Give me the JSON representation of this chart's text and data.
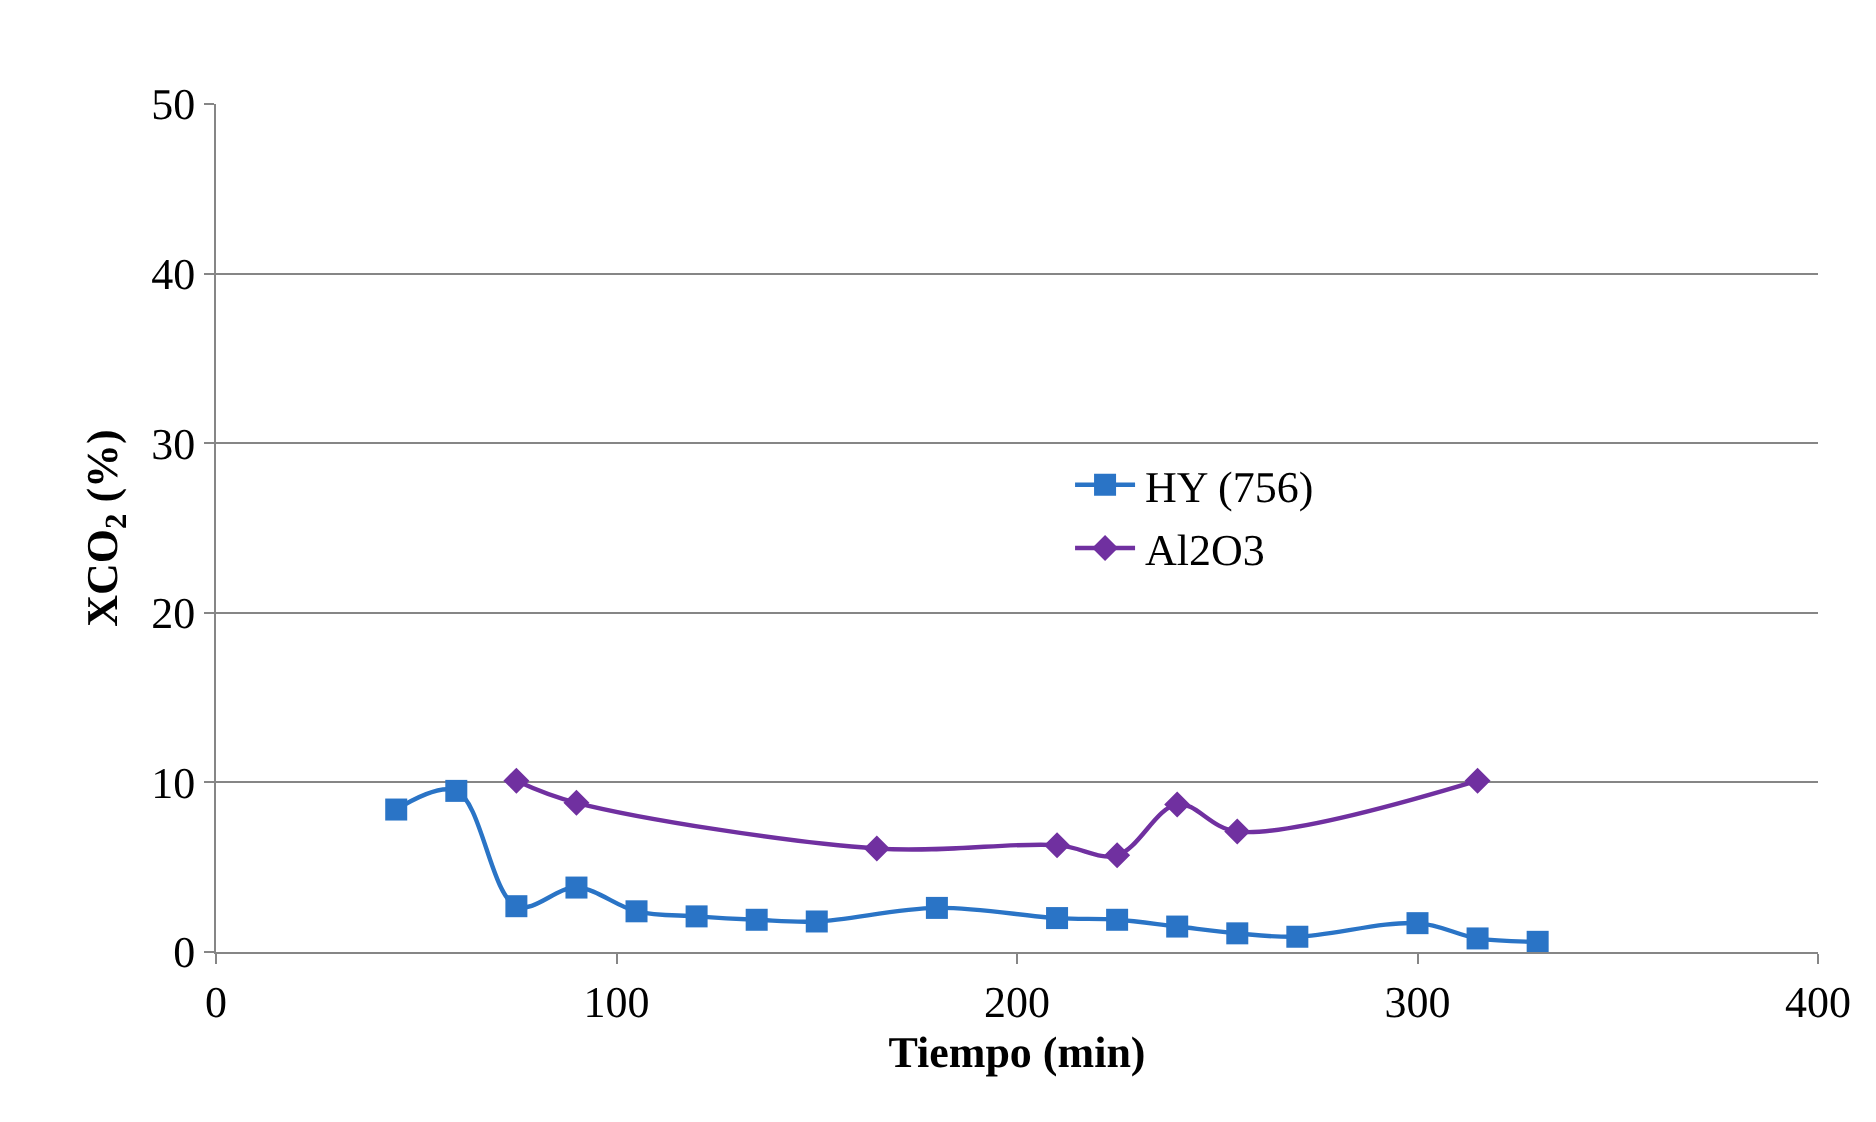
{
  "chart_data": {
    "type": "line",
    "xlabel": "Tiempo (min)",
    "ylabel": "XCO$_{2}$ (%)",
    "xlim": [
      0,
      400
    ],
    "xticks": [
      0,
      100,
      200,
      300,
      400
    ],
    "ylim": [
      0,
      50
    ],
    "yticks": [
      0,
      10,
      20,
      30,
      40,
      50
    ],
    "grid": "y",
    "legend": "center right",
    "line_style": "solid",
    "series": [
      {
        "name": "HY (756)",
        "color": "#2a74c6",
        "marker": "square",
        "x": [
          45,
          60,
          75,
          90,
          105,
          120,
          135,
          150,
          180,
          210,
          225,
          240,
          255,
          270,
          300,
          315,
          330
        ],
        "values": [
          8.4,
          9.5,
          2.7,
          3.8,
          2.4,
          2.1,
          1.9,
          1.8,
          2.6,
          2.0,
          1.9,
          1.5,
          1.1,
          0.9,
          1.7,
          0.8,
          0.6
        ]
      },
      {
        "name": "Al2O3",
        "color": "#7030a0",
        "marker": "diamond",
        "x": [
          75,
          90,
          165,
          210,
          225,
          240,
          255,
          315
        ],
        "values": [
          10.1,
          8.8,
          6.1,
          6.3,
          5.7,
          8.7,
          7.1,
          10.1
        ]
      }
    ]
  }
}
